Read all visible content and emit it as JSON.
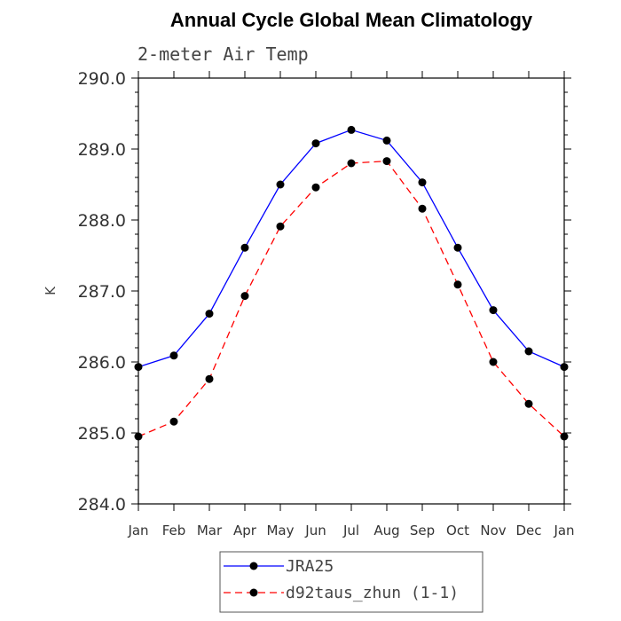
{
  "chart_data": {
    "type": "line",
    "title": "Annual Cycle Global Mean Climatology",
    "subtitle": "2-meter Air Temp",
    "ylabel": "K",
    "xlabel": "",
    "categories": [
      "Jan",
      "Feb",
      "Mar",
      "Apr",
      "May",
      "Jun",
      "Jul",
      "Aug",
      "Sep",
      "Oct",
      "Nov",
      "Dec",
      "Jan"
    ],
    "ylim": [
      284.0,
      290.0
    ],
    "yticks": [
      "284.0",
      "285.0",
      "286.0",
      "287.0",
      "288.0",
      "289.0",
      "290.0"
    ],
    "grid": false,
    "legend_position": "bottom",
    "series": [
      {
        "name": "JRA25",
        "color": "#0000ff",
        "style": "solid",
        "marker": "filled-circle",
        "values": [
          285.93,
          286.09,
          286.68,
          287.61,
          288.5,
          289.08,
          289.27,
          289.12,
          288.53,
          287.61,
          286.73,
          286.15,
          285.93
        ]
      },
      {
        "name": "d92taus_zhun (1-1)",
        "color": "#ff0000",
        "style": "dashed",
        "marker": "filled-circle",
        "values": [
          284.95,
          285.16,
          285.76,
          286.93,
          287.91,
          288.46,
          288.8,
          288.83,
          288.16,
          287.09,
          286.0,
          285.41,
          284.95
        ]
      }
    ]
  }
}
